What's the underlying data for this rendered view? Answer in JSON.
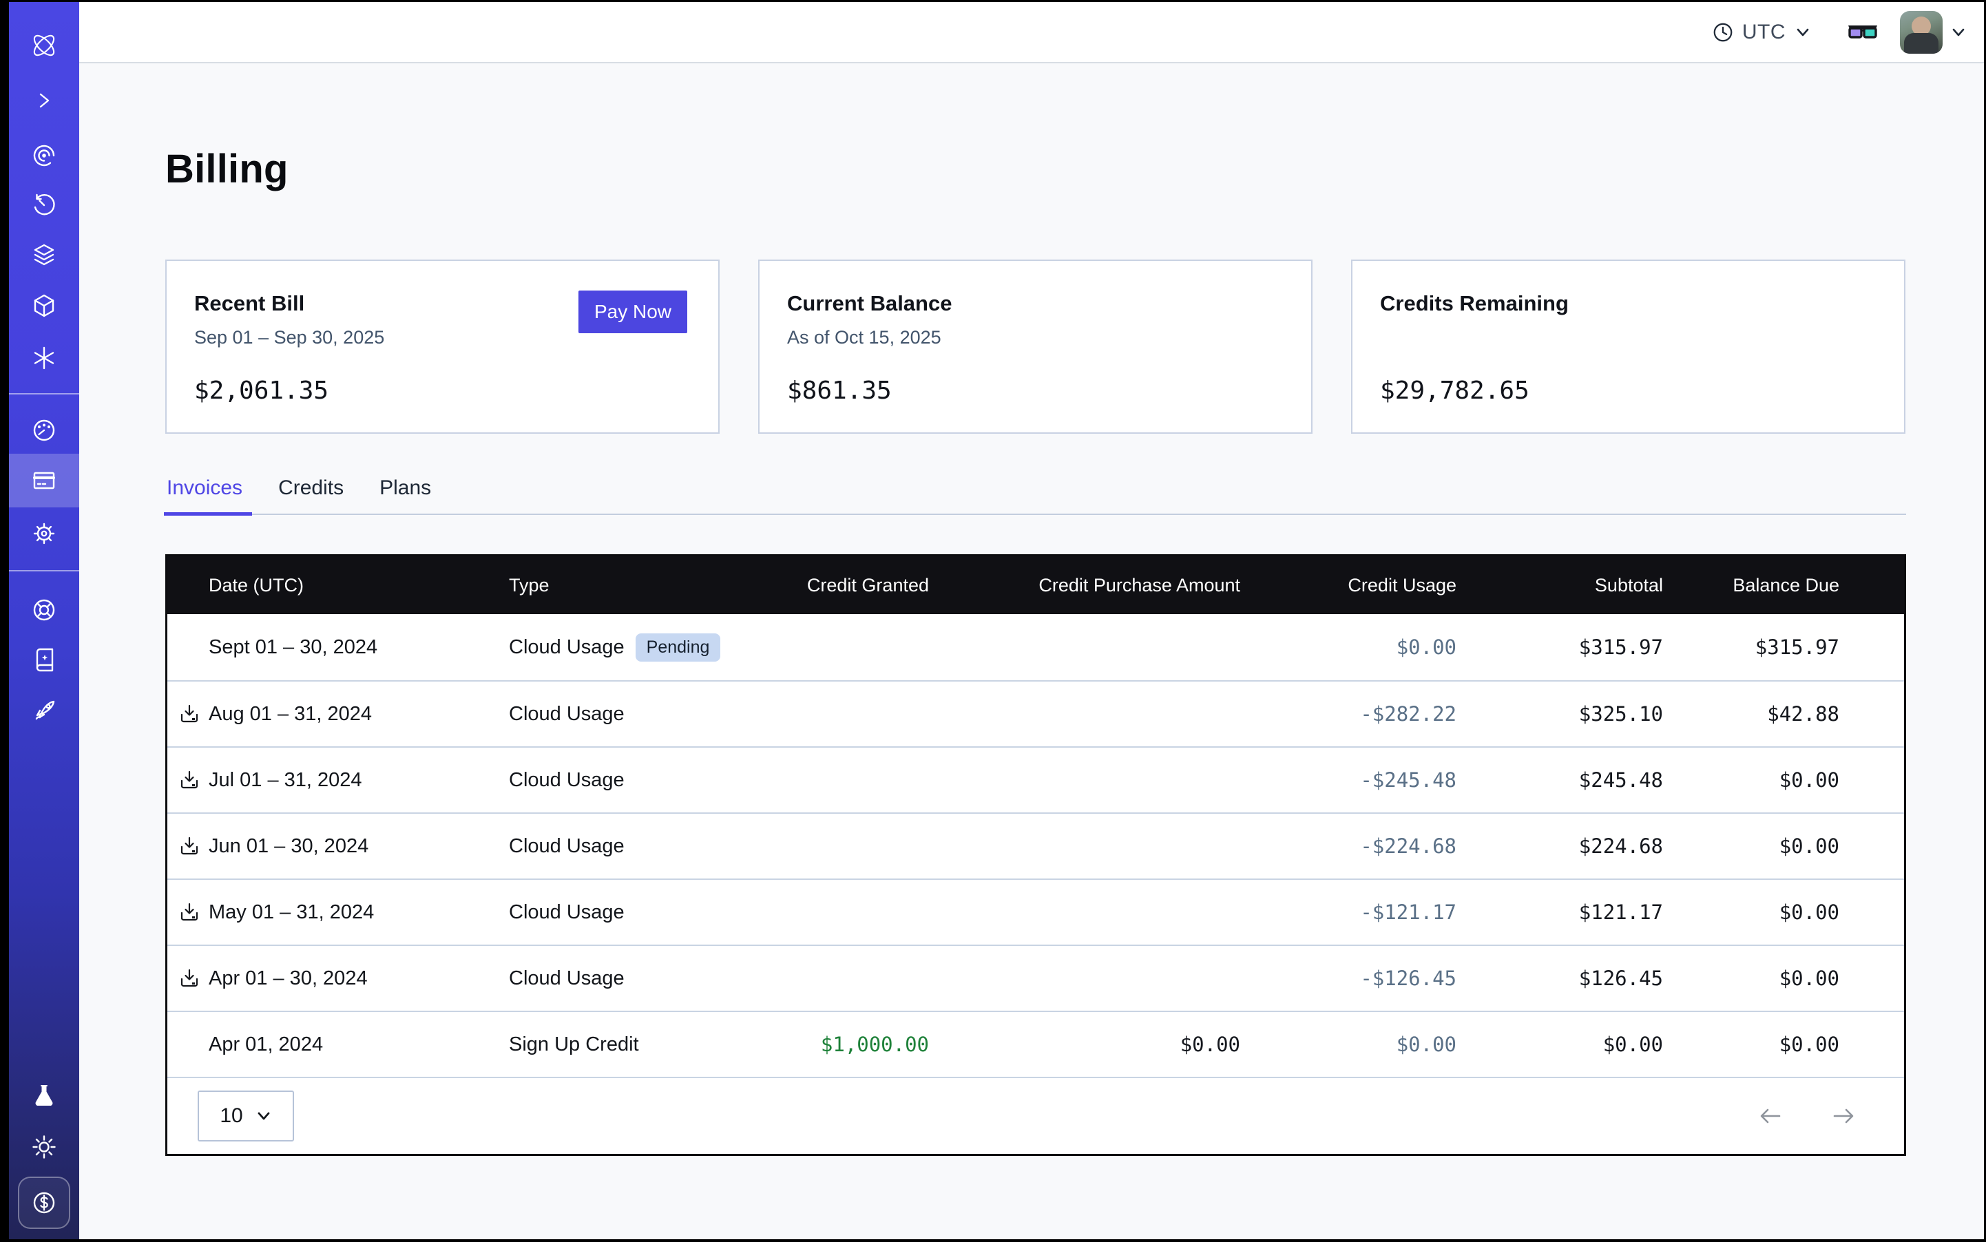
{
  "topbar": {
    "timezone_label": "UTC",
    "icons": [
      "clock-icon",
      "chevron-down-icon",
      "3d-glasses-icon",
      "user-avatar",
      "chevron-down-icon"
    ]
  },
  "page": {
    "title": "Billing"
  },
  "cards": {
    "recent_bill": {
      "title": "Recent Bill",
      "subtitle": "Sep 01 – Sep 30, 2025",
      "amount": "$2,061.35",
      "action_label": "Pay Now"
    },
    "current_balance": {
      "title": "Current Balance",
      "subtitle": "As of Oct 15, 2025",
      "amount": "$861.35"
    },
    "credits_remaining": {
      "title": "Credits Remaining",
      "amount": "$29,782.65"
    }
  },
  "tabs": [
    {
      "label": "Invoices",
      "active": true
    },
    {
      "label": "Credits",
      "active": false
    },
    {
      "label": "Plans",
      "active": false
    }
  ],
  "table": {
    "columns": [
      "Date (UTC)",
      "Type",
      "Credit Granted",
      "Credit Purchase Amount",
      "Credit Usage",
      "Subtotal",
      "Balance Due"
    ],
    "rows": [
      {
        "date": "Sept 01 – 30, 2024",
        "has_download": false,
        "type": "Cloud Usage",
        "badge": "Pending",
        "granted": "",
        "purchase": "",
        "usage": "$0.00",
        "subtotal": "$315.97",
        "balance": "$315.97"
      },
      {
        "date": "Aug 01 – 31, 2024",
        "has_download": true,
        "type": "Cloud Usage",
        "badge": "",
        "granted": "",
        "purchase": "",
        "usage": "-$282.22",
        "subtotal": "$325.10",
        "balance": "$42.88"
      },
      {
        "date": "Jul 01 – 31, 2024",
        "has_download": true,
        "type": "Cloud Usage",
        "badge": "",
        "granted": "",
        "purchase": "",
        "usage": "-$245.48",
        "subtotal": "$245.48",
        "balance": "$0.00"
      },
      {
        "date": "Jun 01 – 30, 2024",
        "has_download": true,
        "type": "Cloud Usage",
        "badge": "",
        "granted": "",
        "purchase": "",
        "usage": "-$224.68",
        "subtotal": "$224.68",
        "balance": "$0.00"
      },
      {
        "date": "May 01 – 31, 2024",
        "has_download": true,
        "type": "Cloud Usage",
        "badge": "",
        "granted": "",
        "purchase": "",
        "usage": "-$121.17",
        "subtotal": "$121.17",
        "balance": "$0.00"
      },
      {
        "date": "Apr 01 – 30, 2024",
        "has_download": true,
        "type": "Cloud Usage",
        "badge": "",
        "granted": "",
        "purchase": "",
        "usage": "-$126.45",
        "subtotal": "$126.45",
        "balance": "$0.00"
      },
      {
        "date": "Apr 01, 2024",
        "has_download": false,
        "type": "Sign Up Credit",
        "badge": "",
        "granted": "$1,000.00",
        "purchase": "$0.00",
        "usage": "$0.00",
        "subtotal": "$0.00",
        "balance": "$0.00"
      }
    ],
    "pagination": {
      "page_size": "10"
    }
  },
  "sidebar": {
    "icons": [
      "logo-orbit-icon",
      "chevron-right-icon",
      "observe-eye-icon",
      "history-clock-icon",
      "layers-icon",
      "cube-icon",
      "asterisk-icon",
      "gauge-icon",
      "billing-card-icon",
      "gear-icon",
      "lifebuoy-icon",
      "docs-book-icon",
      "rocket-icon",
      "flask-icon",
      "sun-icon",
      "dollar-badge-icon"
    ],
    "active_item": "billing-card-icon"
  },
  "colors": {
    "accent": "#4C46E0",
    "sidebar_top": "#4A47E3",
    "sidebar_bottom": "#212457",
    "table_header_bg": "#101014",
    "badge_bg": "#C7D8F2",
    "money_usage": "#5A7087",
    "money_credit_green": "#1E8139",
    "card_border": "#C9D2E3",
    "page_bg": "#F8F9FB"
  }
}
